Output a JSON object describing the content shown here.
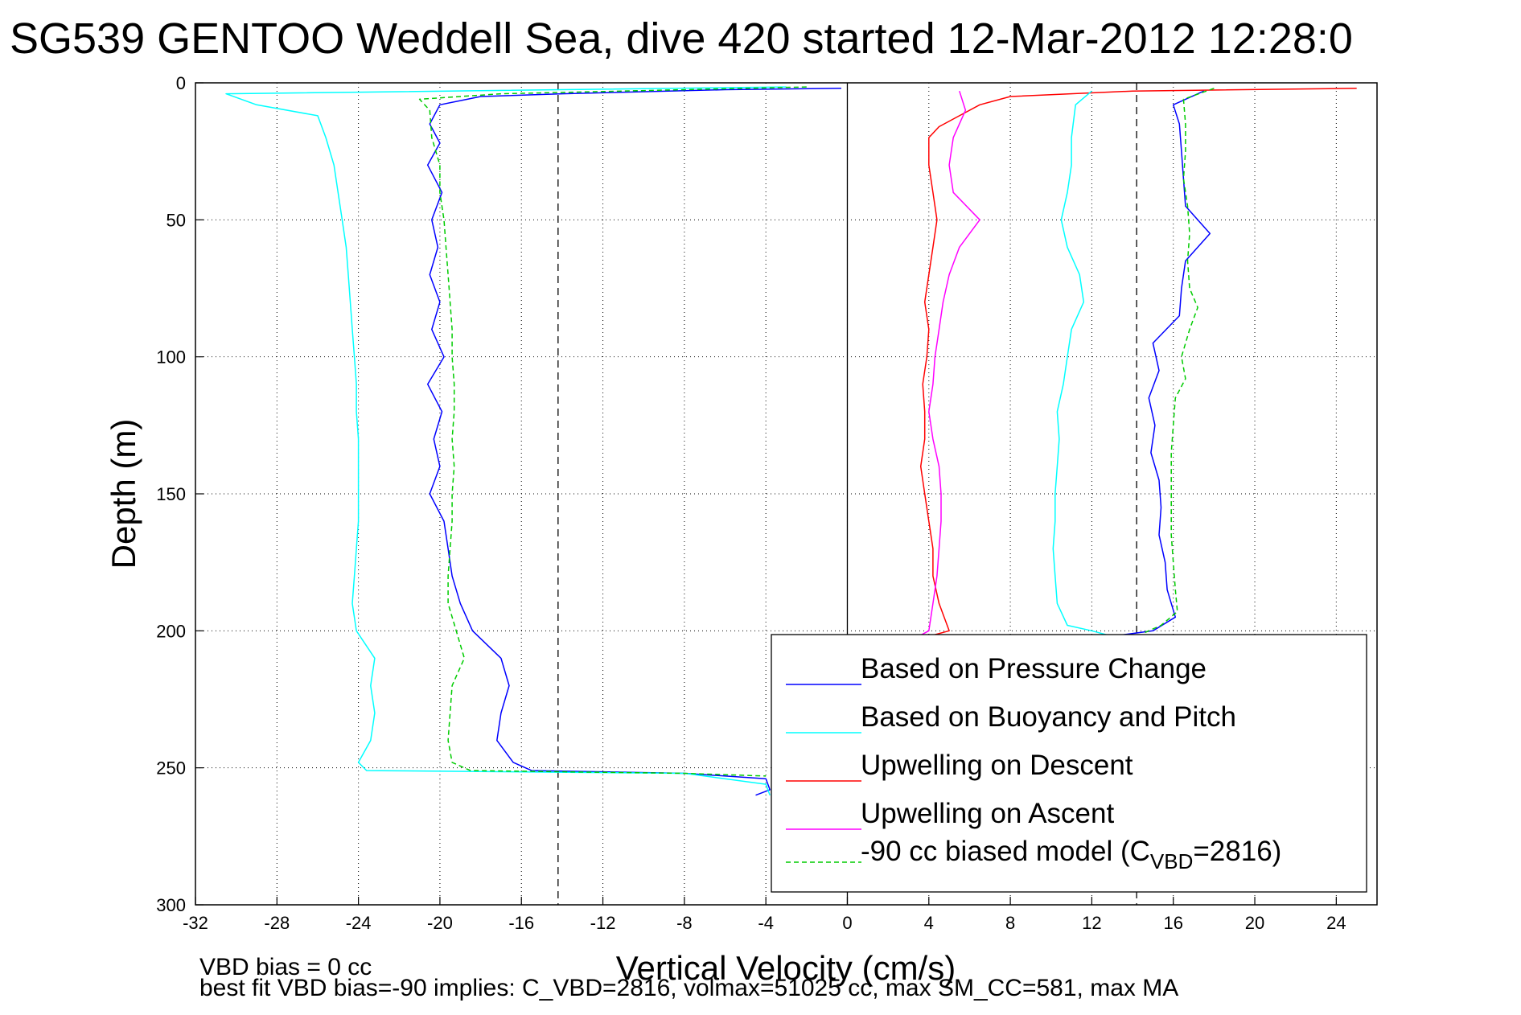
{
  "chart_data": {
    "type": "line",
    "title": "SG539 GENTOO Weddell Sea, dive 420 started 12-Mar-2012 12:28:0",
    "xlabel": "Vertical Velocity (cm/s)",
    "ylabel": "Depth (m)",
    "xlim": [
      -32,
      26
    ],
    "ylim": [
      0,
      300
    ],
    "y_reversed": true,
    "x_ticks": [
      -32,
      -28,
      -24,
      -20,
      -16,
      -12,
      -8,
      -4,
      0,
      4,
      8,
      12,
      16,
      20,
      24
    ],
    "y_ticks": [
      0,
      50,
      100,
      150,
      200,
      250,
      300
    ],
    "grid": true,
    "reference_lines": {
      "dashed_x": [
        -14.2,
        14.2
      ],
      "solid_x": [
        0
      ]
    },
    "legend_position": "bottom-right",
    "legend": [
      {
        "label": "Based on Pressure Change",
        "color": "#0000ff",
        "dashed": false
      },
      {
        "label": "Based on Buoyancy and Pitch",
        "color": "#00ffff",
        "dashed": false
      },
      {
        "label": "Upwelling on Descent",
        "color": "#ff0000",
        "dashed": false
      },
      {
        "label": "Upwelling on Ascent",
        "color": "#ff00ff",
        "dashed": false
      },
      {
        "label_main": "-90 cc biased model (C",
        "label_sub": "VBD",
        "label_tail": "=2816)",
        "color": "#00cc00",
        "dashed": true
      }
    ],
    "series": [
      {
        "color": "#0000ff",
        "dashed": false,
        "points": [
          [
            -0.3,
            2
          ],
          [
            -6,
            2.5
          ],
          [
            -14,
            4
          ],
          [
            -18,
            5
          ],
          [
            -20,
            8
          ],
          [
            -20.5,
            15
          ],
          [
            -20,
            22
          ],
          [
            -20.6,
            30
          ],
          [
            -19.9,
            40
          ],
          [
            -20.4,
            50
          ],
          [
            -20.1,
            60
          ],
          [
            -20.5,
            70
          ],
          [
            -20,
            80
          ],
          [
            -20.4,
            90
          ],
          [
            -19.8,
            100
          ],
          [
            -20.6,
            110
          ],
          [
            -19.9,
            120
          ],
          [
            -20.3,
            130
          ],
          [
            -20,
            140
          ],
          [
            -20.5,
            150
          ],
          [
            -19.8,
            160
          ],
          [
            -19.6,
            170
          ],
          [
            -19.4,
            180
          ],
          [
            -19,
            190
          ],
          [
            -18.4,
            200
          ],
          [
            -17,
            210
          ],
          [
            -16.6,
            220
          ],
          [
            -17,
            230
          ],
          [
            -17.2,
            240
          ],
          [
            -16.4,
            248
          ],
          [
            -15.5,
            251
          ],
          [
            -8,
            252
          ],
          [
            -4,
            254
          ],
          [
            -3.8,
            258
          ],
          [
            -4.5,
            260
          ]
        ]
      },
      {
        "color": "#00ffff",
        "dashed": false,
        "points": [
          [
            -3,
            1.5
          ],
          [
            -30.5,
            4
          ],
          [
            -29,
            8
          ],
          [
            -26,
            12
          ],
          [
            -25.6,
            20
          ],
          [
            -25.2,
            30
          ],
          [
            -25,
            40
          ],
          [
            -24.8,
            50
          ],
          [
            -24.6,
            60
          ],
          [
            -24.5,
            70
          ],
          [
            -24.4,
            80
          ],
          [
            -24.3,
            90
          ],
          [
            -24.2,
            100
          ],
          [
            -24.1,
            110
          ],
          [
            -24.1,
            120
          ],
          [
            -24,
            130
          ],
          [
            -24,
            140
          ],
          [
            -24,
            150
          ],
          [
            -24,
            160
          ],
          [
            -24.1,
            170
          ],
          [
            -24.2,
            180
          ],
          [
            -24.3,
            190
          ],
          [
            -24.1,
            200
          ],
          [
            -23.2,
            210
          ],
          [
            -23.4,
            220
          ],
          [
            -23.2,
            230
          ],
          [
            -23.4,
            240
          ],
          [
            -24,
            248
          ],
          [
            -23.6,
            251
          ],
          [
            -8,
            252
          ],
          [
            -4,
            256
          ],
          [
            -3.8,
            260
          ]
        ]
      },
      {
        "color": "#ff0000",
        "dashed": false,
        "points": [
          [
            25,
            2
          ],
          [
            14,
            3
          ],
          [
            8,
            5
          ],
          [
            6.5,
            8
          ],
          [
            5.5,
            12
          ],
          [
            4.5,
            16
          ],
          [
            4,
            20
          ],
          [
            4,
            30
          ],
          [
            4.2,
            40
          ],
          [
            4.4,
            50
          ],
          [
            4.2,
            60
          ],
          [
            4,
            70
          ],
          [
            3.8,
            80
          ],
          [
            4,
            90
          ],
          [
            3.9,
            100
          ],
          [
            3.7,
            110
          ],
          [
            3.8,
            120
          ],
          [
            3.8,
            130
          ],
          [
            3.6,
            140
          ],
          [
            3.8,
            150
          ],
          [
            4,
            160
          ],
          [
            4.2,
            170
          ],
          [
            4.2,
            180
          ],
          [
            4.5,
            190
          ],
          [
            5,
            200
          ],
          [
            4,
            202
          ]
        ]
      },
      {
        "color": "#ff00ff",
        "dashed": false,
        "points": [
          [
            5.5,
            3
          ],
          [
            5.8,
            10
          ],
          [
            5.2,
            20
          ],
          [
            5,
            30
          ],
          [
            5.2,
            40
          ],
          [
            6.5,
            50
          ],
          [
            5.5,
            60
          ],
          [
            5,
            70
          ],
          [
            4.7,
            80
          ],
          [
            4.5,
            90
          ],
          [
            4.3,
            100
          ],
          [
            4.2,
            110
          ],
          [
            4,
            120
          ],
          [
            4.2,
            130
          ],
          [
            4.5,
            140
          ],
          [
            4.6,
            150
          ],
          [
            4.6,
            160
          ],
          [
            4.5,
            170
          ],
          [
            4.4,
            180
          ],
          [
            4.2,
            190
          ],
          [
            4,
            200
          ],
          [
            3.5,
            202
          ]
        ]
      },
      {
        "color": "#00ffff",
        "dashed": false,
        "points": [
          [
            12,
            3
          ],
          [
            11.2,
            8
          ],
          [
            11,
            20
          ],
          [
            11,
            30
          ],
          [
            10.8,
            40
          ],
          [
            10.5,
            50
          ],
          [
            10.8,
            60
          ],
          [
            11.4,
            70
          ],
          [
            11.6,
            80
          ],
          [
            11,
            90
          ],
          [
            10.8,
            100
          ],
          [
            10.6,
            110
          ],
          [
            10.3,
            120
          ],
          [
            10.4,
            130
          ],
          [
            10.3,
            140
          ],
          [
            10.2,
            150
          ],
          [
            10.2,
            160
          ],
          [
            10.1,
            170
          ],
          [
            10.2,
            180
          ],
          [
            10.3,
            190
          ],
          [
            10.8,
            198
          ],
          [
            12,
            200
          ],
          [
            13,
            202
          ]
        ]
      },
      {
        "color": "#0000ff",
        "dashed": false,
        "points": [
          [
            17.5,
            3
          ],
          [
            16,
            8
          ],
          [
            16.3,
            15
          ],
          [
            16.4,
            25
          ],
          [
            16.5,
            35
          ],
          [
            16.6,
            45
          ],
          [
            17.8,
            55
          ],
          [
            16.6,
            65
          ],
          [
            16.4,
            75
          ],
          [
            16.3,
            85
          ],
          [
            15,
            95
          ],
          [
            15.3,
            105
          ],
          [
            14.8,
            115
          ],
          [
            15.1,
            125
          ],
          [
            14.9,
            135
          ],
          [
            15.3,
            145
          ],
          [
            15.4,
            155
          ],
          [
            15.3,
            165
          ],
          [
            15.6,
            175
          ],
          [
            15.7,
            185
          ],
          [
            16.1,
            195
          ],
          [
            15,
            200
          ],
          [
            13,
            202
          ]
        ]
      },
      {
        "color": "#00cc00",
        "dashed": true,
        "points": [
          [
            -2,
            1.5
          ],
          [
            -17,
            4
          ],
          [
            -21,
            6
          ],
          [
            -20.5,
            10
          ],
          [
            -20.4,
            20
          ],
          [
            -20,
            30
          ],
          [
            -20,
            40
          ],
          [
            -19.8,
            50
          ],
          [
            -19.7,
            60
          ],
          [
            -19.6,
            70
          ],
          [
            -19.5,
            80
          ],
          [
            -19.4,
            90
          ],
          [
            -19.4,
            100
          ],
          [
            -19.3,
            110
          ],
          [
            -19.3,
            120
          ],
          [
            -19.4,
            130
          ],
          [
            -19.3,
            140
          ],
          [
            -19.4,
            150
          ],
          [
            -19.4,
            160
          ],
          [
            -19.5,
            170
          ],
          [
            -19.6,
            180
          ],
          [
            -19.6,
            190
          ],
          [
            -19.2,
            200
          ],
          [
            -18.8,
            210
          ],
          [
            -19.4,
            220
          ],
          [
            -19.5,
            230
          ],
          [
            -19.6,
            240
          ],
          [
            -19.4,
            248
          ],
          [
            -18.5,
            251
          ],
          [
            -8,
            252
          ],
          [
            -4,
            253
          ]
        ]
      },
      {
        "color": "#00cc00",
        "dashed": true,
        "points": [
          [
            18,
            2
          ],
          [
            16.5,
            6
          ],
          [
            16.6,
            15
          ],
          [
            16.6,
            25
          ],
          [
            16.5,
            35
          ],
          [
            16.7,
            45
          ],
          [
            16.8,
            55
          ],
          [
            16.7,
            65
          ],
          [
            16.8,
            75
          ],
          [
            17.2,
            82
          ],
          [
            16.8,
            90
          ],
          [
            16.4,
            100
          ],
          [
            16.6,
            108
          ],
          [
            16.1,
            115
          ],
          [
            16,
            125
          ],
          [
            15.9,
            135
          ],
          [
            15.9,
            145
          ],
          [
            15.9,
            155
          ],
          [
            15.9,
            165
          ],
          [
            16,
            175
          ],
          [
            16.1,
            185
          ],
          [
            16.2,
            193
          ],
          [
            15.4,
            198
          ],
          [
            14.5,
            201
          ]
        ]
      }
    ],
    "notes": [
      "VBD bias = 0 cc",
      "best fit VBD bias=-90 implies: C_VBD=2816, volmax=51025 cc, max SM_CC=581, max MA"
    ]
  }
}
